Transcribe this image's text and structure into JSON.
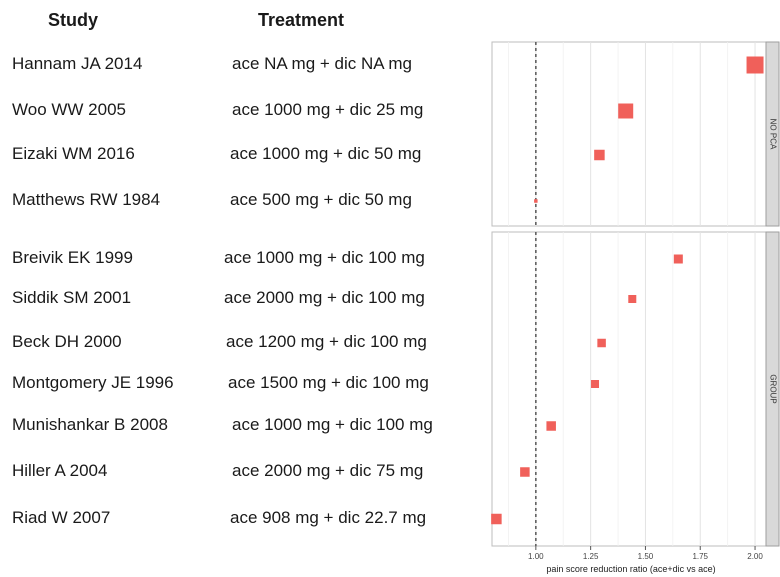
{
  "headers": {
    "study": "Study",
    "treatment": "Treatment"
  },
  "chart_data": {
    "type": "scatter",
    "xlabel": "pain score reduction ratio (ace+dic vs ace)",
    "xlim": [
      0.8,
      2.05
    ],
    "xticks": [
      "1.00",
      "1.25",
      "1.50",
      "1.75",
      "2.00"
    ],
    "reference_line": 1.0,
    "grid": "vertical",
    "panels": [
      {
        "strip_label": "NO PCA",
        "rows": [
          {
            "study": "Hannam JA 2014",
            "treatment": "ace NA mg + dic NA mg",
            "ratio": 2.0,
            "weight": 3
          },
          {
            "study": "Woo WW 2005",
            "treatment": "ace 1000 mg + dic 25 mg",
            "ratio": 1.41,
            "weight": 2.6
          },
          {
            "study": "Eizaki WM 2016",
            "treatment": "ace 1000 mg + dic 50 mg",
            "ratio": 1.29,
            "weight": 1.7
          },
          {
            "study": "Matthews RW 1984",
            "treatment": "ace 500 mg + dic 50 mg",
            "ratio": 1.0,
            "weight": 0.3
          }
        ]
      },
      {
        "strip_label": "GROUP",
        "rows": [
          {
            "study": "Breivik EK 1999",
            "treatment": "ace 1000 mg + dic 100 mg",
            "ratio": 1.65,
            "weight": 1.4
          },
          {
            "study": "Siddik SM 2001",
            "treatment": "ace 2000 mg + dic 100 mg",
            "ratio": 1.44,
            "weight": 1.2
          },
          {
            "study": "Beck DH 2000",
            "treatment": "ace 1200 mg + dic 100 mg",
            "ratio": 1.3,
            "weight": 1.3
          },
          {
            "study": "Montgomery JE 1996",
            "treatment": "ace 1500 mg + dic 100 mg",
            "ratio": 1.27,
            "weight": 1.2
          },
          {
            "study": "Munishankar B 2008",
            "treatment": "ace 1000 mg + dic 100 mg",
            "ratio": 1.07,
            "weight": 1.5
          },
          {
            "study": "Hiller A 2004",
            "treatment": "ace 2000 mg + dic 75 mg",
            "ratio": 0.95,
            "weight": 1.5
          },
          {
            "study": "Riad W 2007",
            "treatment": "ace 908 mg + dic 22.7 mg",
            "ratio": 0.82,
            "weight": 1.7
          }
        ]
      }
    ]
  }
}
